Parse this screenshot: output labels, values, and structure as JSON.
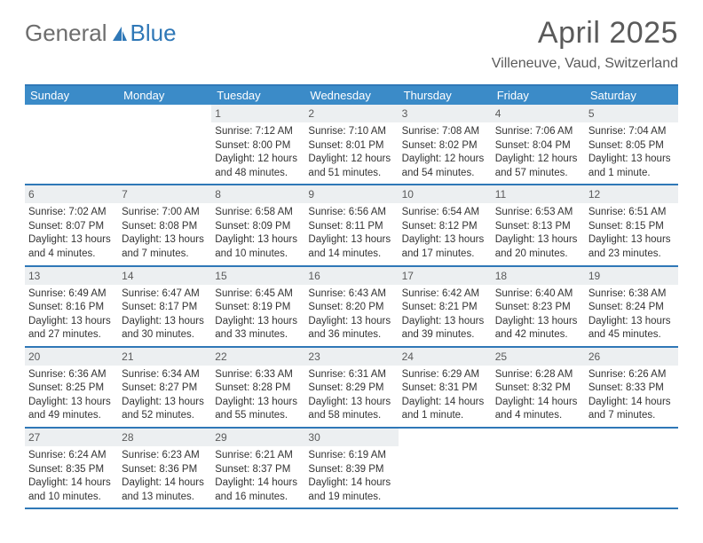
{
  "brand": {
    "part1": "General",
    "part2": "Blue"
  },
  "title": "April 2025",
  "location": "Villeneuve, Vaud, Switzerland",
  "colors": {
    "header_bg": "#3b8bc8",
    "border": "#2f78b7",
    "daynum_bg": "#eceff1",
    "text": "#333333",
    "title_text": "#5a5a5a"
  },
  "weekdays": [
    "Sunday",
    "Monday",
    "Tuesday",
    "Wednesday",
    "Thursday",
    "Friday",
    "Saturday"
  ],
  "weeks": [
    [
      null,
      null,
      {
        "n": "1",
        "sr": "Sunrise: 7:12 AM",
        "ss": "Sunset: 8:00 PM",
        "dl": "Daylight: 12 hours and 48 minutes."
      },
      {
        "n": "2",
        "sr": "Sunrise: 7:10 AM",
        "ss": "Sunset: 8:01 PM",
        "dl": "Daylight: 12 hours and 51 minutes."
      },
      {
        "n": "3",
        "sr": "Sunrise: 7:08 AM",
        "ss": "Sunset: 8:02 PM",
        "dl": "Daylight: 12 hours and 54 minutes."
      },
      {
        "n": "4",
        "sr": "Sunrise: 7:06 AM",
        "ss": "Sunset: 8:04 PM",
        "dl": "Daylight: 12 hours and 57 minutes."
      },
      {
        "n": "5",
        "sr": "Sunrise: 7:04 AM",
        "ss": "Sunset: 8:05 PM",
        "dl": "Daylight: 13 hours and 1 minute."
      }
    ],
    [
      {
        "n": "6",
        "sr": "Sunrise: 7:02 AM",
        "ss": "Sunset: 8:07 PM",
        "dl": "Daylight: 13 hours and 4 minutes."
      },
      {
        "n": "7",
        "sr": "Sunrise: 7:00 AM",
        "ss": "Sunset: 8:08 PM",
        "dl": "Daylight: 13 hours and 7 minutes."
      },
      {
        "n": "8",
        "sr": "Sunrise: 6:58 AM",
        "ss": "Sunset: 8:09 PM",
        "dl": "Daylight: 13 hours and 10 minutes."
      },
      {
        "n": "9",
        "sr": "Sunrise: 6:56 AM",
        "ss": "Sunset: 8:11 PM",
        "dl": "Daylight: 13 hours and 14 minutes."
      },
      {
        "n": "10",
        "sr": "Sunrise: 6:54 AM",
        "ss": "Sunset: 8:12 PM",
        "dl": "Daylight: 13 hours and 17 minutes."
      },
      {
        "n": "11",
        "sr": "Sunrise: 6:53 AM",
        "ss": "Sunset: 8:13 PM",
        "dl": "Daylight: 13 hours and 20 minutes."
      },
      {
        "n": "12",
        "sr": "Sunrise: 6:51 AM",
        "ss": "Sunset: 8:15 PM",
        "dl": "Daylight: 13 hours and 23 minutes."
      }
    ],
    [
      {
        "n": "13",
        "sr": "Sunrise: 6:49 AM",
        "ss": "Sunset: 8:16 PM",
        "dl": "Daylight: 13 hours and 27 minutes."
      },
      {
        "n": "14",
        "sr": "Sunrise: 6:47 AM",
        "ss": "Sunset: 8:17 PM",
        "dl": "Daylight: 13 hours and 30 minutes."
      },
      {
        "n": "15",
        "sr": "Sunrise: 6:45 AM",
        "ss": "Sunset: 8:19 PM",
        "dl": "Daylight: 13 hours and 33 minutes."
      },
      {
        "n": "16",
        "sr": "Sunrise: 6:43 AM",
        "ss": "Sunset: 8:20 PM",
        "dl": "Daylight: 13 hours and 36 minutes."
      },
      {
        "n": "17",
        "sr": "Sunrise: 6:42 AM",
        "ss": "Sunset: 8:21 PM",
        "dl": "Daylight: 13 hours and 39 minutes."
      },
      {
        "n": "18",
        "sr": "Sunrise: 6:40 AM",
        "ss": "Sunset: 8:23 PM",
        "dl": "Daylight: 13 hours and 42 minutes."
      },
      {
        "n": "19",
        "sr": "Sunrise: 6:38 AM",
        "ss": "Sunset: 8:24 PM",
        "dl": "Daylight: 13 hours and 45 minutes."
      }
    ],
    [
      {
        "n": "20",
        "sr": "Sunrise: 6:36 AM",
        "ss": "Sunset: 8:25 PM",
        "dl": "Daylight: 13 hours and 49 minutes."
      },
      {
        "n": "21",
        "sr": "Sunrise: 6:34 AM",
        "ss": "Sunset: 8:27 PM",
        "dl": "Daylight: 13 hours and 52 minutes."
      },
      {
        "n": "22",
        "sr": "Sunrise: 6:33 AM",
        "ss": "Sunset: 8:28 PM",
        "dl": "Daylight: 13 hours and 55 minutes."
      },
      {
        "n": "23",
        "sr": "Sunrise: 6:31 AM",
        "ss": "Sunset: 8:29 PM",
        "dl": "Daylight: 13 hours and 58 minutes."
      },
      {
        "n": "24",
        "sr": "Sunrise: 6:29 AM",
        "ss": "Sunset: 8:31 PM",
        "dl": "Daylight: 14 hours and 1 minute."
      },
      {
        "n": "25",
        "sr": "Sunrise: 6:28 AM",
        "ss": "Sunset: 8:32 PM",
        "dl": "Daylight: 14 hours and 4 minutes."
      },
      {
        "n": "26",
        "sr": "Sunrise: 6:26 AM",
        "ss": "Sunset: 8:33 PM",
        "dl": "Daylight: 14 hours and 7 minutes."
      }
    ],
    [
      {
        "n": "27",
        "sr": "Sunrise: 6:24 AM",
        "ss": "Sunset: 8:35 PM",
        "dl": "Daylight: 14 hours and 10 minutes."
      },
      {
        "n": "28",
        "sr": "Sunrise: 6:23 AM",
        "ss": "Sunset: 8:36 PM",
        "dl": "Daylight: 14 hours and 13 minutes."
      },
      {
        "n": "29",
        "sr": "Sunrise: 6:21 AM",
        "ss": "Sunset: 8:37 PM",
        "dl": "Daylight: 14 hours and 16 minutes."
      },
      {
        "n": "30",
        "sr": "Sunrise: 6:19 AM",
        "ss": "Sunset: 8:39 PM",
        "dl": "Daylight: 14 hours and 19 minutes."
      },
      null,
      null,
      null
    ]
  ]
}
